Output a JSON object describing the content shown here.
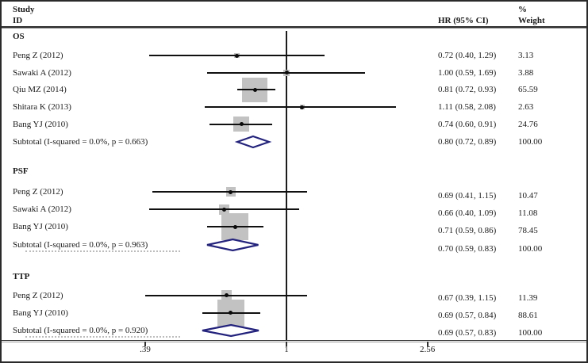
{
  "header": {
    "col_study_line1": "Study",
    "col_study_line2": "ID",
    "col_hr": "HR (95% CI)",
    "col_weight_line1": "%",
    "col_weight_line2": "Weight"
  },
  "chart_data": {
    "type": "forest",
    "title": "",
    "xlabel": "",
    "x_axis": {
      "scale": "log",
      "ref_value": 1,
      "ticks": [
        {
          "label": ".39",
          "value": 0.39
        },
        {
          "label": "1",
          "value": 1
        },
        {
          "label": "2.56",
          "value": 2.56
        }
      ]
    },
    "colors": {
      "square_fill": "#c2c2c2",
      "ci_line": "#101010",
      "diamond_stroke": "#23237e",
      "text": "#1a1a1a"
    },
    "groups": [
      {
        "label": "OS",
        "studies": [
          {
            "name": "Peng Z (2012)",
            "hr": 0.72,
            "ci_low": 0.4,
            "ci_high": 1.29,
            "weight": 3.13,
            "hr_text": "0.72 (0.40, 1.29)",
            "weight_text": "3.13"
          },
          {
            "name": "Sawaki A (2012)",
            "hr": 1.0,
            "ci_low": 0.59,
            "ci_high": 1.69,
            "weight": 3.88,
            "hr_text": "1.00 (0.59, 1.69)",
            "weight_text": "3.88"
          },
          {
            "name": "Qiu MZ (2014)",
            "hr": 0.81,
            "ci_low": 0.72,
            "ci_high": 0.93,
            "weight": 65.59,
            "hr_text": "0.81 (0.72, 0.93)",
            "weight_text": "65.59"
          },
          {
            "name": "Shitara K (2013)",
            "hr": 1.11,
            "ci_low": 0.58,
            "ci_high": 2.08,
            "weight": 2.63,
            "hr_text": "1.11 (0.58, 2.08)",
            "weight_text": "2.63"
          },
          {
            "name": "Bang YJ (2010)",
            "hr": 0.74,
            "ci_low": 0.6,
            "ci_high": 0.91,
            "weight": 24.76,
            "hr_text": "0.74 (0.60, 0.91)",
            "weight_text": "24.76"
          }
        ],
        "subtotal": {
          "name": "Subtotal (I-squared = 0.0%, p = 0.663)",
          "hr": 0.8,
          "ci_low": 0.72,
          "ci_high": 0.89,
          "hr_text": "0.80 (0.72, 0.89)",
          "weight_text": "100.00"
        }
      },
      {
        "label": "PSF",
        "studies": [
          {
            "name": "Peng Z (2012)",
            "hr": 0.69,
            "ci_low": 0.41,
            "ci_high": 1.15,
            "weight": 10.47,
            "hr_text": "0.69 (0.41, 1.15)",
            "weight_text": "10.47"
          },
          {
            "name": "Sawaki A (2012)",
            "hr": 0.66,
            "ci_low": 0.4,
            "ci_high": 1.09,
            "weight": 11.08,
            "hr_text": "0.66 (0.40, 1.09)",
            "weight_text": "11.08"
          },
          {
            "name": "Bang YJ (2010)",
            "hr": 0.71,
            "ci_low": 0.59,
            "ci_high": 0.86,
            "weight": 78.45,
            "hr_text": "0.71 (0.59, 0.86)",
            "weight_text": "78.45"
          }
        ],
        "subtotal": {
          "name": "Subtotal (I-squared = 0.0%, p = 0.963)",
          "hr": 0.7,
          "ci_low": 0.59,
          "ci_high": 0.83,
          "hr_text": "0.70 (0.59, 0.83)",
          "weight_text": "100.00"
        }
      },
      {
        "label": "TTP",
        "studies": [
          {
            "name": "Peng Z (2012)",
            "hr": 0.67,
            "ci_low": 0.39,
            "ci_high": 1.15,
            "weight": 11.39,
            "hr_text": "0.67 (0.39, 1.15)",
            "weight_text": "11.39"
          },
          {
            "name": "Bang YJ (2010)",
            "hr": 0.69,
            "ci_low": 0.57,
            "ci_high": 0.84,
            "weight": 88.61,
            "hr_text": "0.69 (0.57, 0.84)",
            "weight_text": "88.61"
          }
        ],
        "subtotal": {
          "name": "Subtotal (I-squared = 0.0%, p = 0.920)",
          "hr": 0.69,
          "ci_low": 0.57,
          "ci_high": 0.83,
          "hr_text": "0.69 (0.57, 0.83)",
          "weight_text": "100.00"
        }
      }
    ]
  }
}
